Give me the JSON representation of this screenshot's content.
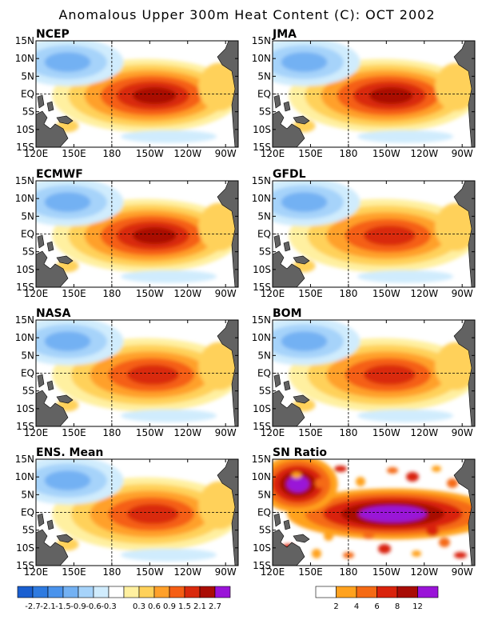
{
  "figure_title": "Anomalous Upper 300m Heat Content (C): OCT 2002",
  "lon_ticks": [
    "120E",
    "150E",
    "180",
    "150W",
    "120W",
    "90W"
  ],
  "lat_ticks": [
    "15N",
    "10N",
    "5N",
    "EQ",
    "5S",
    "10S",
    "15S"
  ],
  "anomaly_colors": [
    "#1a5fd0",
    "#2e7ae0",
    "#4a93ec",
    "#73b1f3",
    "#a6d3fa",
    "#d0ecfd",
    "#ffffff",
    "#fff0a0",
    "#ffd15a",
    "#ffa02a",
    "#f55e14",
    "#d92a0d",
    "#aa0d05",
    "#9a14d8"
  ],
  "sn_colors": [
    "#ffffff",
    "#ffa21f",
    "#f56a14",
    "#d9230c",
    "#a80c06",
    "#9a14d8"
  ],
  "land_color": "#626262",
  "colorbar_anomaly": {
    "labels": [
      "-2.7",
      "-2.1",
      "-1.5",
      "-0.9",
      "-0.6",
      "-0.3",
      "0.3",
      "0.6",
      "0.9",
      "1.5",
      "2.1",
      "2.7"
    ]
  },
  "colorbar_sn": {
    "labels": [
      "2",
      "4",
      "6",
      "8",
      "12"
    ]
  },
  "chart_data": [
    {
      "type": "heatmap",
      "title": "NCEP",
      "variable": "upper 300m heat content anomaly (C)",
      "x_range": [
        "120E",
        "80W"
      ],
      "y_range": [
        "15S",
        "15N"
      ],
      "features": [
        {
          "center_lon": "150W",
          "center_lat": "EQ",
          "value": 2.6,
          "sign": "positive"
        },
        {
          "center_lon": "140E",
          "center_lat": "10N",
          "value": -1.6,
          "sign": "negative"
        }
      ]
    },
    {
      "type": "heatmap",
      "title": "JMA",
      "variable": "upper 300m heat content anomaly (C)",
      "x_range": [
        "120E",
        "80W"
      ],
      "y_range": [
        "15S",
        "15N"
      ],
      "features": [
        {
          "center_lon": "155W",
          "center_lat": "EQ",
          "value": 2.7,
          "sign": "positive"
        },
        {
          "center_lon": "140E",
          "center_lat": "9N",
          "value": -1.8,
          "sign": "negative"
        }
      ]
    },
    {
      "type": "heatmap",
      "title": "ECMWF",
      "variable": "upper 300m heat content anomaly (C)",
      "x_range": [
        "120E",
        "80W"
      ],
      "y_range": [
        "15S",
        "15N"
      ],
      "features": [
        {
          "center_lon": "160W",
          "center_lat": "EQ",
          "value": 2.5,
          "sign": "positive"
        },
        {
          "center_lon": "140E",
          "center_lat": "8N",
          "value": -1.5,
          "sign": "negative"
        }
      ]
    },
    {
      "type": "heatmap",
      "title": "GFDL",
      "variable": "upper 300m heat content anomaly (C)",
      "x_range": [
        "120E",
        "80W"
      ],
      "y_range": [
        "15S",
        "15N"
      ],
      "features": [
        {
          "center_lon": "150W",
          "center_lat": "EQ",
          "value": 2.4,
          "sign": "positive"
        },
        {
          "center_lon": "145E",
          "center_lat": "9N",
          "value": -1.6,
          "sign": "negative"
        }
      ]
    },
    {
      "type": "heatmap",
      "title": "NASA",
      "variable": "upper 300m heat content anomaly (C)",
      "x_range": [
        "120E",
        "80W"
      ],
      "y_range": [
        "15S",
        "15N"
      ],
      "features": [
        {
          "center_lon": "150W",
          "center_lat": "EQ",
          "value": 2.2,
          "sign": "positive"
        },
        {
          "center_lon": "145E",
          "center_lat": "8N",
          "value": -1.5,
          "sign": "negative"
        }
      ]
    },
    {
      "type": "heatmap",
      "title": "BOM",
      "variable": "upper 300m heat content anomaly (C)",
      "x_range": [
        "120E",
        "80W"
      ],
      "y_range": [
        "15S",
        "15N"
      ],
      "features": [
        {
          "center_lon": "150W",
          "center_lat": "EQ",
          "value": 2.4,
          "sign": "positive"
        },
        {
          "center_lon": "145E",
          "center_lat": "8N",
          "value": -1.4,
          "sign": "negative"
        }
      ]
    },
    {
      "type": "heatmap",
      "title": "ENS. Mean",
      "variable": "upper 300m heat content anomaly (C)",
      "x_range": [
        "120E",
        "80W"
      ],
      "y_range": [
        "15S",
        "15N"
      ],
      "features": [
        {
          "center_lon": "150W",
          "center_lat": "EQ",
          "value": 2.4,
          "sign": "positive"
        },
        {
          "center_lon": "145E",
          "center_lat": "9N",
          "value": -1.6,
          "sign": "negative"
        }
      ]
    },
    {
      "type": "heatmap",
      "title": "SN Ratio",
      "variable": "signal-to-noise ratio",
      "x_range": [
        "120E",
        "80W"
      ],
      "y_range": [
        "15S",
        "15N"
      ],
      "features": [
        {
          "center_lon": "140W",
          "center_lat": "EQ",
          "value": 12,
          "sign": "positive"
        },
        {
          "center_lon": "145E",
          "center_lat": "5N",
          "value": 12,
          "sign": "positive"
        }
      ]
    }
  ]
}
